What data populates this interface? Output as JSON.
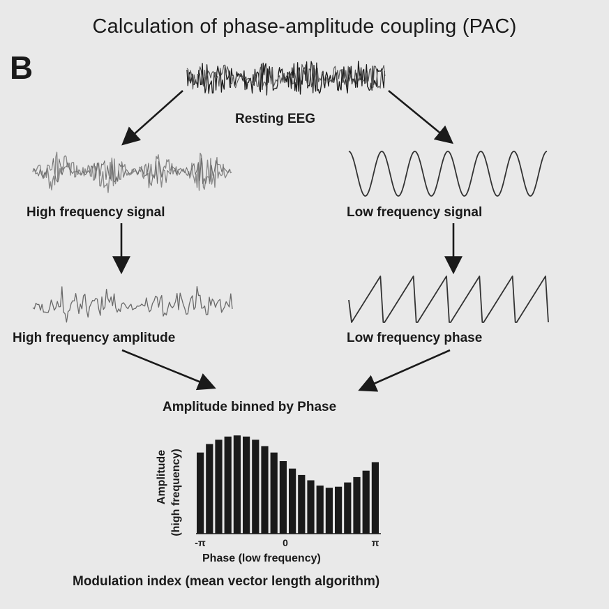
{
  "title": "Calculation of phase-amplitude coupling (PAC)",
  "panel_letter": "B",
  "labels": {
    "resting_eeg": "Resting EEG",
    "high_freq_signal": "High frequency signal",
    "low_freq_signal": "Low frequency signal",
    "high_freq_amplitude": "High frequency amplitude",
    "low_freq_phase": "Low frequency phase",
    "binned": "Amplitude binned by Phase",
    "modulation_index": "Modulation index (mean vector length algorithm)"
  },
  "histogram": {
    "ylabel_line1": "Amplitude",
    "ylabel_line2": "(high frequency)",
    "xlabel": "Phase (low frequency)",
    "ticks": [
      "-π",
      "0",
      "π"
    ],
    "values": [
      0.76,
      0.84,
      0.88,
      0.91,
      0.92,
      0.91,
      0.88,
      0.82,
      0.76,
      0.68,
      0.61,
      0.55,
      0.5,
      0.45,
      0.43,
      0.44,
      0.48,
      0.53,
      0.59,
      0.67
    ]
  },
  "colors": {
    "background": "#e9e9e9",
    "ink": "#1a1a1a",
    "grey_trace": "#8a8a8a"
  }
}
